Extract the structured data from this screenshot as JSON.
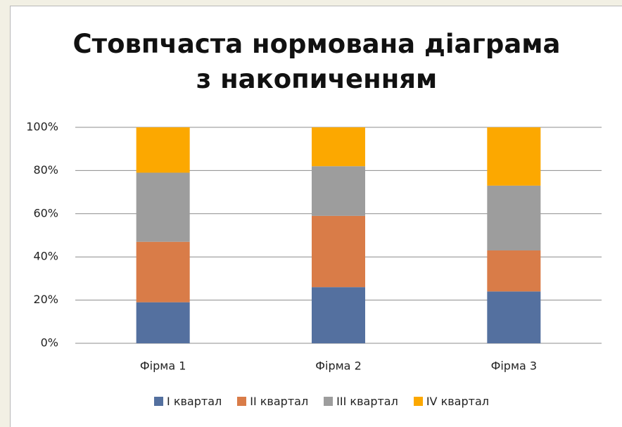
{
  "chart_data": {
    "type": "stacked_bar_100",
    "title": "Стовпчаста нормована діаграма з накопиченням",
    "categories": [
      "Фірма 1",
      "Фірма 2",
      "Фірма 3"
    ],
    "series": [
      {
        "name": "I квартал",
        "color": "#54709f",
        "values": [
          19,
          26,
          24
        ]
      },
      {
        "name": "II квартал",
        "color": "#d97c48",
        "values": [
          28,
          33,
          19
        ]
      },
      {
        "name": "III квартал",
        "color": "#9d9d9d",
        "values": [
          32,
          23,
          30
        ]
      },
      {
        "name": "IV квартал",
        "color": "#fca800",
        "values": [
          21,
          18,
          27
        ]
      }
    ],
    "ylim": [
      0,
      100
    ],
    "yticks": [
      {
        "value": 0,
        "label": "0%"
      },
      {
        "value": 20,
        "label": "20%"
      },
      {
        "value": 40,
        "label": "40%"
      },
      {
        "value": 60,
        "label": "60%"
      },
      {
        "value": 80,
        "label": "80%"
      },
      {
        "value": 100,
        "label": "100%"
      }
    ],
    "grid": true,
    "legend": "bottom"
  }
}
